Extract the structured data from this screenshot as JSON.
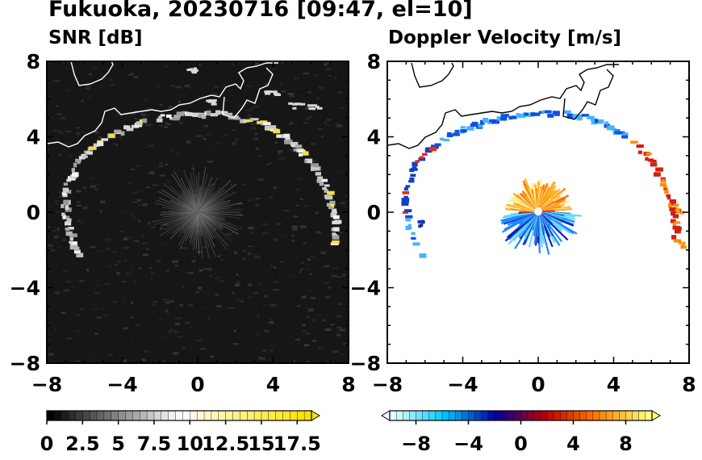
{
  "title": "Fukuoka, 20230716 [09:47, el=10]",
  "chart_data": [
    {
      "type": "heatmap",
      "title": "SNR [dB]",
      "xlim": [
        -8,
        8
      ],
      "ylim": [
        -8,
        8
      ],
      "xticks": [
        "−8",
        "−4",
        "0",
        "4",
        "8"
      ],
      "yticks": [
        "8",
        "4",
        "0",
        "−4",
        "−8"
      ],
      "colorbar": {
        "range": [
          0,
          18.5
        ],
        "ticks": [
          "0",
          "2.5",
          "5",
          "7.5",
          "10",
          "12.5",
          "15",
          "17.5"
        ],
        "colors": [
          "#000000",
          "#ffffff",
          "#ffe000"
        ]
      }
    },
    {
      "type": "heatmap",
      "title": "Doppler Velocity [m/s]",
      "xlim": [
        -8,
        8
      ],
      "ylim": [
        -8,
        8
      ],
      "xticks": [
        "−8",
        "−4",
        "0",
        "4",
        "8"
      ],
      "yticks": [
        "8",
        "4",
        "0",
        "−4",
        "−8"
      ],
      "colorbar": {
        "range": [
          -10,
          10
        ],
        "ticks": [
          "−8",
          "−4",
          "0",
          "4",
          "8"
        ],
        "colors": [
          "#e6ffff",
          "#00c8ff",
          "#0000a0",
          "#c00000",
          "#ff8000",
          "#ffff80"
        ]
      }
    }
  ]
}
